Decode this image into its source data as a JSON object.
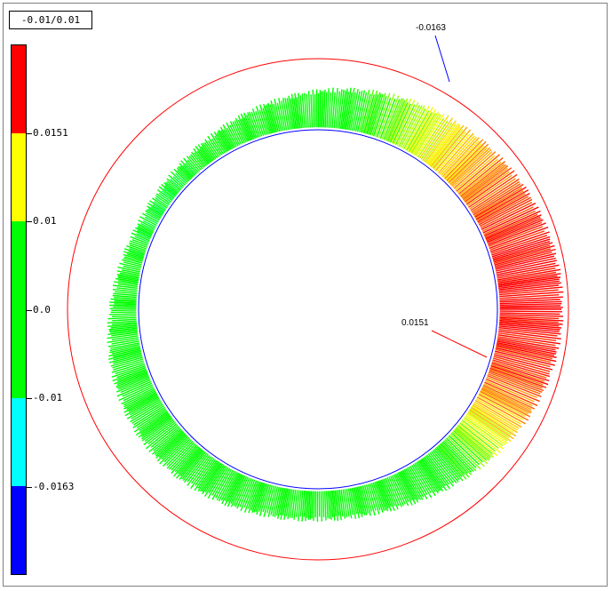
{
  "tolerance_label": "-0.01/0.01",
  "legend": {
    "segments": [
      {
        "color": "#ff0000"
      },
      {
        "color": "#ffff00"
      },
      {
        "color": "#00ff00"
      },
      {
        "color": "#00ff00"
      },
      {
        "color": "#00ffff"
      },
      {
        "color": "#0000ff"
      }
    ],
    "labels": [
      {
        "text": "0.0151",
        "index": 1
      },
      {
        "text": "0.01",
        "index": 2
      },
      {
        "text": "0.0",
        "index": 3
      },
      {
        "text": "-0.01",
        "index": 4
      },
      {
        "text": "-0.0163",
        "index": 5
      }
    ]
  },
  "chart_data": {
    "type": "polar-deviation",
    "max_label": "0.0151",
    "min_label": "-0.0163",
    "max_value": 0.0151,
    "min_value": -0.0163,
    "upper_tolerance": 0.01,
    "lower_tolerance": -0.01,
    "colors": {
      "reference_circle": "#0000ff",
      "outer_circle": "#ff0000",
      "max_leader": "#ff0000",
      "min_leader": "#0000ff"
    }
  }
}
